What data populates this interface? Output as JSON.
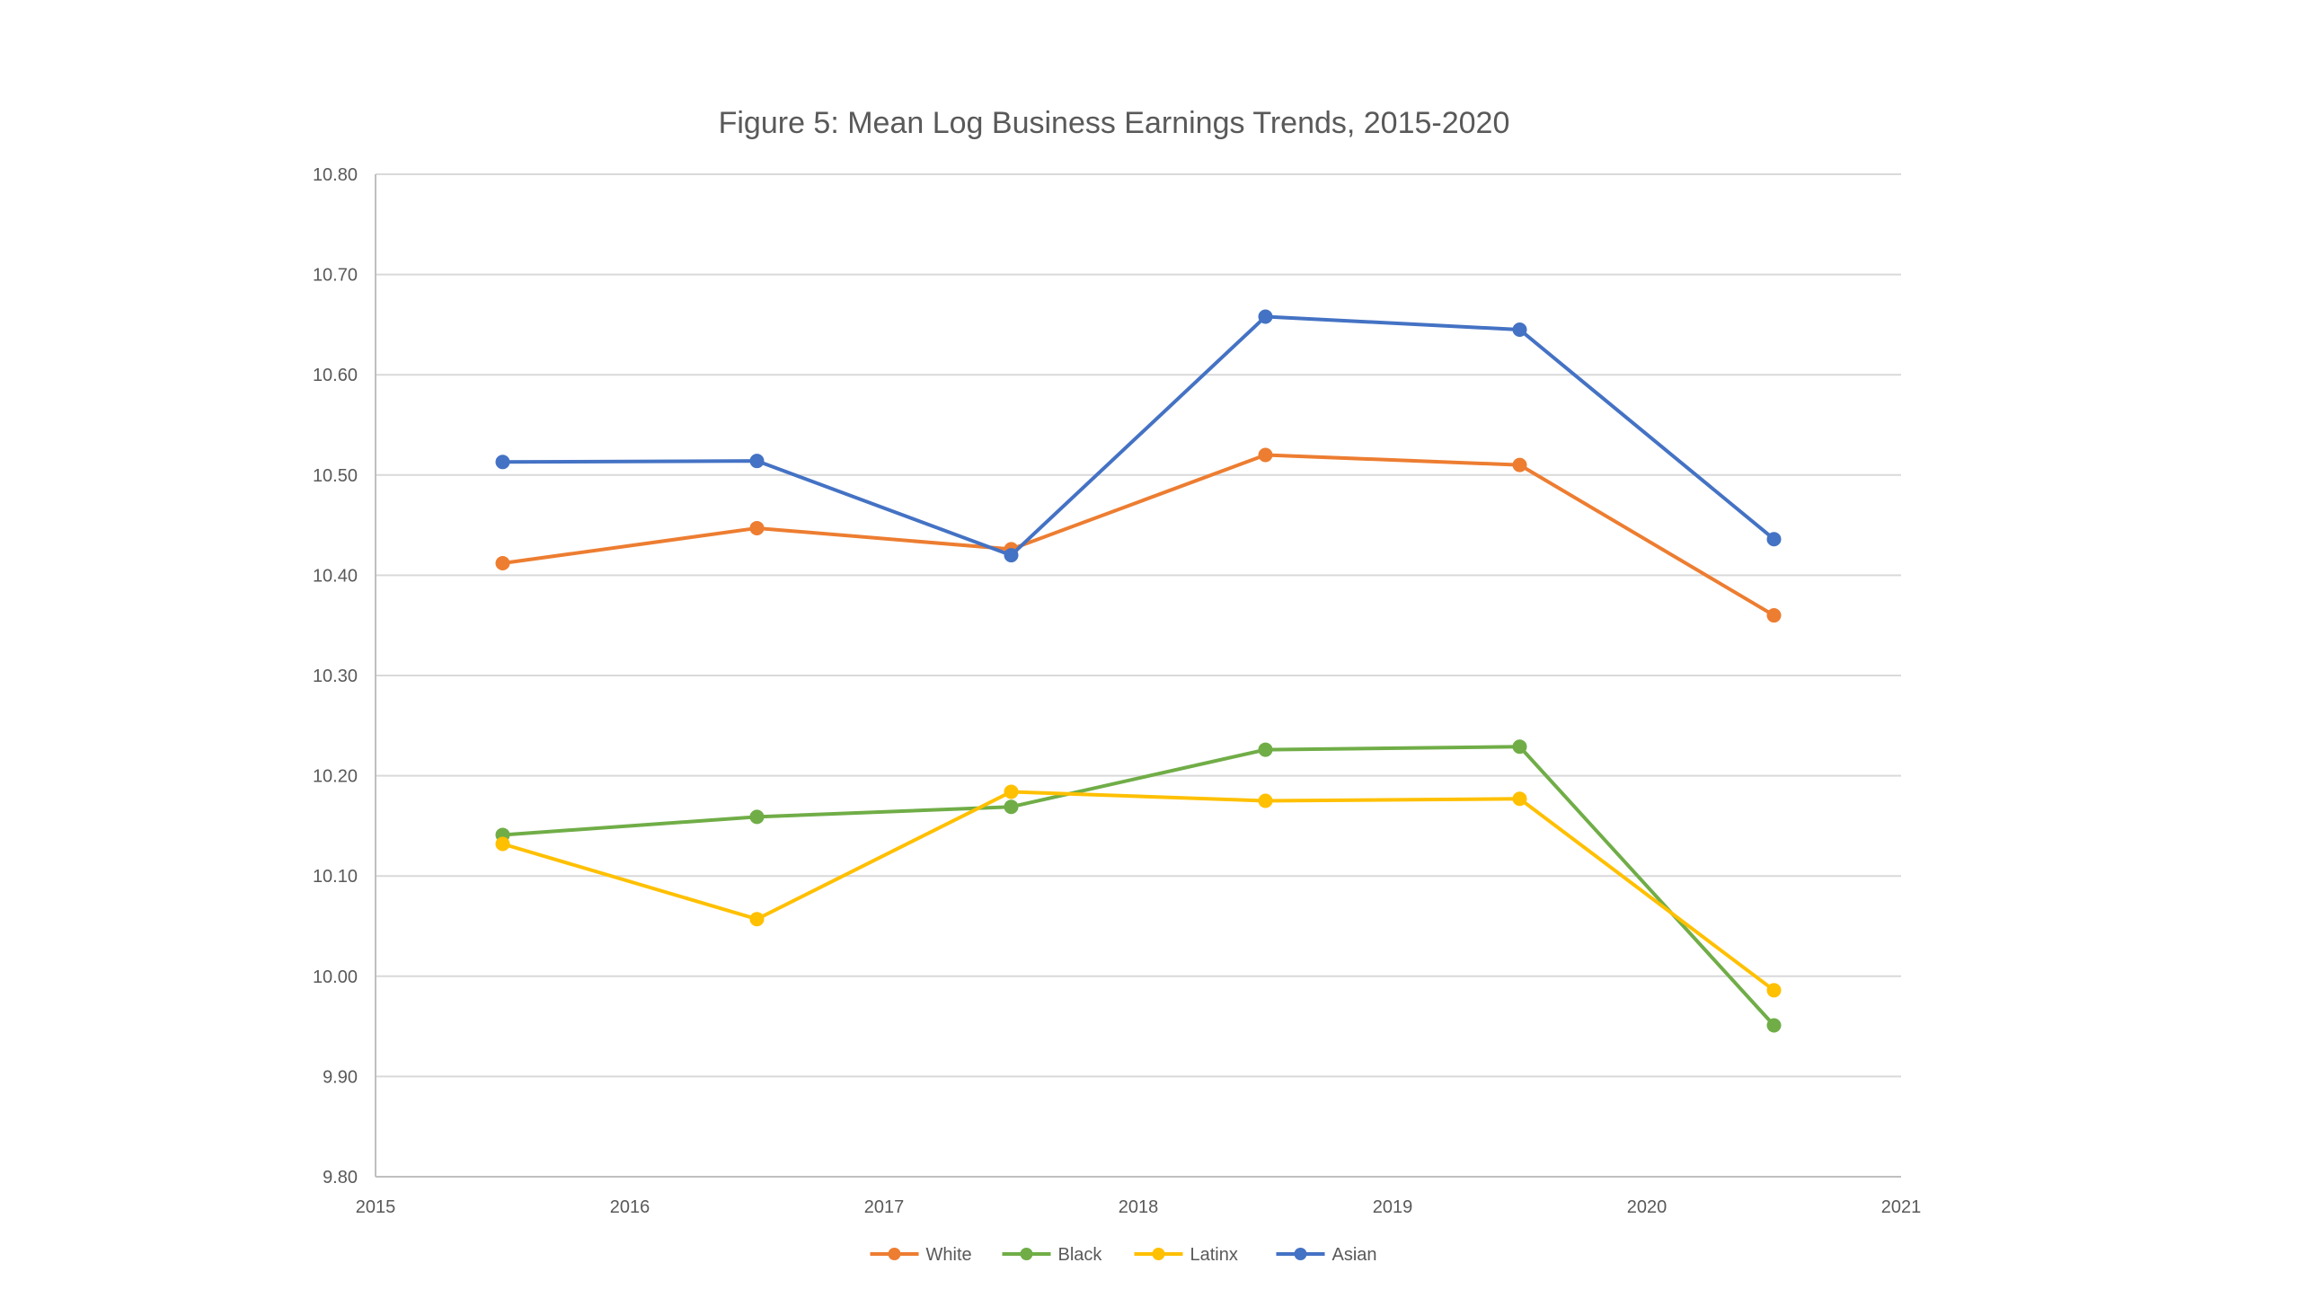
{
  "chart_data": {
    "type": "line",
    "title": "Figure 5: Mean Log Business Earnings Trends, 2015-2020",
    "xlabel": "",
    "ylabel": "",
    "xlim": [
      2015,
      2021
    ],
    "ylim": [
      9.8,
      10.8
    ],
    "x_ticks": [
      "2015",
      "2016",
      "2017",
      "2018",
      "2019",
      "2020",
      "2021"
    ],
    "y_ticks": [
      "9.80",
      "9.90",
      "10.00",
      "10.10",
      "10.20",
      "10.30",
      "10.40",
      "10.50",
      "10.60",
      "10.70",
      "10.80"
    ],
    "grid": true,
    "legend_position": "bottom",
    "x": [
      2015.5,
      2016.5,
      2017.5,
      2018.5,
      2019.5,
      2020.5
    ],
    "series": [
      {
        "name": "White",
        "color": "#ED7D31",
        "values": [
          10.412,
          10.447,
          10.426,
          10.52,
          10.51,
          10.36
        ]
      },
      {
        "name": "Black",
        "color": "#70AD47",
        "values": [
          10.141,
          10.159,
          10.169,
          10.226,
          10.229,
          9.951
        ]
      },
      {
        "name": "Latinx",
        "color": "#FFC000",
        "values": [
          10.132,
          10.057,
          10.184,
          10.175,
          10.177,
          9.986
        ]
      },
      {
        "name": "Asian",
        "color": "#4472C4",
        "values": [
          10.513,
          10.514,
          10.42,
          10.658,
          10.645,
          10.436
        ]
      }
    ]
  }
}
